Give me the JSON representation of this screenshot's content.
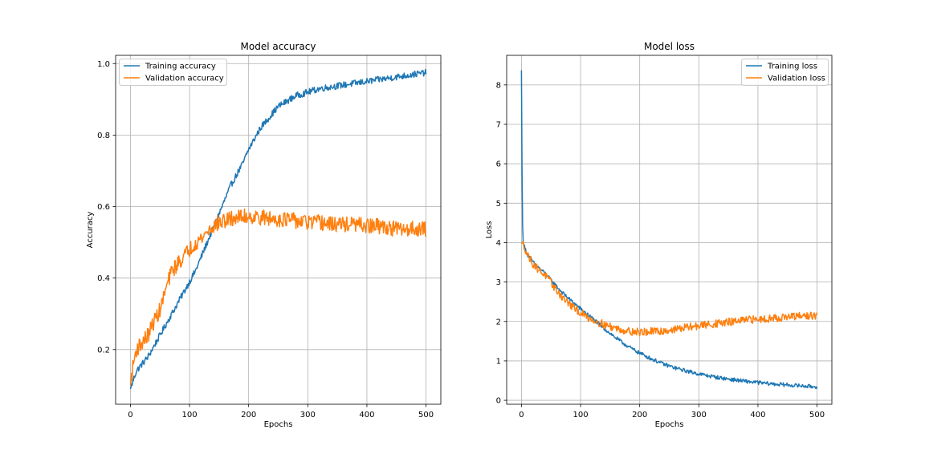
{
  "colors": {
    "train": "#1f77b4",
    "val": "#ff7f0e",
    "grid": "#b0b0b0",
    "frame": "#000000"
  },
  "chart_data": [
    {
      "type": "line",
      "title": "Model accuracy",
      "xlabel": "Epochs",
      "ylabel": "Accuracy",
      "xlim": [
        -25,
        525
      ],
      "ylim": [
        0.047,
        1.023
      ],
      "xticks": [
        0,
        100,
        200,
        300,
        400,
        500
      ],
      "xtick_labels": [
        "0",
        "100",
        "200",
        "300",
        "400",
        "500"
      ],
      "yticks": [
        0.2,
        0.4,
        0.6,
        0.8,
        1.0
      ],
      "ytick_labels": [
        "0.2",
        "0.4",
        "0.6",
        "0.8",
        "1.0"
      ],
      "grid": true,
      "legend": "top-left",
      "noise_amplitude": 0.012,
      "series": [
        {
          "name": "Training accuracy",
          "color": "#1f77b4",
          "noise": 0.009,
          "x": [
            0,
            10,
            20,
            30,
            40,
            50,
            60,
            70,
            80,
            90,
            100,
            110,
            120,
            130,
            140,
            150,
            160,
            170,
            180,
            190,
            200,
            210,
            220,
            230,
            240,
            250,
            260,
            270,
            280,
            290,
            300,
            320,
            340,
            360,
            380,
            400,
            420,
            440,
            460,
            480,
            500
          ],
          "y": [
            0.09,
            0.14,
            0.16,
            0.18,
            0.21,
            0.24,
            0.27,
            0.3,
            0.33,
            0.36,
            0.39,
            0.42,
            0.46,
            0.5,
            0.54,
            0.58,
            0.62,
            0.66,
            0.69,
            0.72,
            0.76,
            0.79,
            0.82,
            0.84,
            0.86,
            0.88,
            0.89,
            0.9,
            0.91,
            0.915,
            0.92,
            0.93,
            0.935,
            0.94,
            0.945,
            0.95,
            0.955,
            0.96,
            0.965,
            0.97,
            0.975
          ]
        },
        {
          "name": "Validation accuracy",
          "color": "#ff7f0e",
          "noise": 0.022,
          "x": [
            0,
            5,
            10,
            20,
            30,
            40,
            50,
            60,
            70,
            80,
            90,
            100,
            110,
            120,
            130,
            140,
            150,
            160,
            170,
            180,
            190,
            200,
            210,
            220,
            240,
            260,
            280,
            300,
            320,
            340,
            360,
            380,
            400,
            420,
            440,
            460,
            480,
            500
          ],
          "y": [
            0.1,
            0.16,
            0.2,
            0.22,
            0.24,
            0.28,
            0.31,
            0.37,
            0.42,
            0.44,
            0.46,
            0.48,
            0.5,
            0.51,
            0.53,
            0.545,
            0.555,
            0.56,
            0.565,
            0.57,
            0.57,
            0.575,
            0.57,
            0.57,
            0.565,
            0.565,
            0.56,
            0.555,
            0.555,
            0.55,
            0.55,
            0.55,
            0.545,
            0.545,
            0.54,
            0.535,
            0.54,
            0.535
          ]
        }
      ]
    },
    {
      "type": "line",
      "title": "Model loss",
      "xlabel": "Epochs",
      "ylabel": "Loss",
      "xlim": [
        -25,
        525
      ],
      "ylim": [
        -0.1,
        8.75
      ],
      "xticks": [
        0,
        100,
        200,
        300,
        400,
        500
      ],
      "xtick_labels": [
        "0",
        "100",
        "200",
        "300",
        "400",
        "500"
      ],
      "yticks": [
        0,
        1,
        2,
        3,
        4,
        5,
        6,
        7,
        8
      ],
      "ytick_labels": [
        "0",
        "1",
        "2",
        "3",
        "4",
        "5",
        "6",
        "7",
        "8"
      ],
      "grid": true,
      "legend": "top-right",
      "series": [
        {
          "name": "Training loss",
          "color": "#1f77b4",
          "noise": 0.012,
          "x": [
            0,
            1,
            2,
            3,
            5,
            10,
            20,
            30,
            40,
            50,
            60,
            70,
            80,
            90,
            100,
            110,
            120,
            130,
            140,
            150,
            160,
            170,
            180,
            190,
            200,
            220,
            240,
            260,
            280,
            300,
            320,
            340,
            360,
            380,
            400,
            420,
            440,
            460,
            480,
            500
          ],
          "y": [
            8.37,
            5.8,
            4.4,
            4.05,
            3.9,
            3.7,
            3.5,
            3.35,
            3.22,
            3.05,
            2.88,
            2.72,
            2.58,
            2.45,
            2.32,
            2.2,
            2.08,
            1.95,
            1.82,
            1.7,
            1.58,
            1.47,
            1.37,
            1.28,
            1.2,
            1.05,
            0.92,
            0.82,
            0.74,
            0.67,
            0.61,
            0.56,
            0.52,
            0.48,
            0.45,
            0.42,
            0.4,
            0.38,
            0.36,
            0.34
          ]
        },
        {
          "name": "Validation loss",
          "color": "#ff7f0e",
          "noise": 0.025,
          "x": [
            0,
            3,
            5,
            10,
            20,
            30,
            40,
            50,
            60,
            70,
            80,
            90,
            100,
            110,
            120,
            130,
            140,
            150,
            160,
            170,
            180,
            190,
            200,
            220,
            240,
            260,
            280,
            300,
            320,
            340,
            360,
            380,
            400,
            420,
            440,
            460,
            480,
            500
          ],
          "y": [
            4.0,
            3.95,
            3.9,
            3.7,
            3.45,
            3.3,
            3.18,
            2.98,
            2.78,
            2.6,
            2.46,
            2.32,
            2.22,
            2.12,
            2.05,
            1.98,
            1.92,
            1.87,
            1.83,
            1.79,
            1.76,
            1.74,
            1.73,
            1.74,
            1.76,
            1.8,
            1.85,
            1.89,
            1.93,
            1.96,
            2.0,
            2.03,
            2.06,
            2.08,
            2.1,
            2.12,
            2.14,
            2.15
          ]
        }
      ]
    }
  ]
}
